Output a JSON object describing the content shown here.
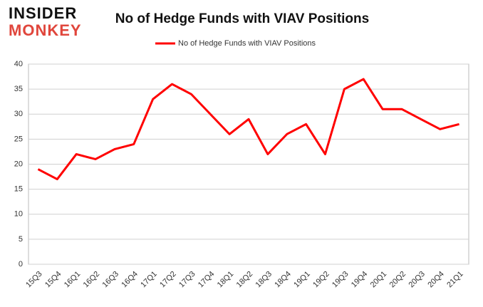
{
  "logo": {
    "line1": "INSIDER",
    "line2": "MONKEY"
  },
  "chart_data": {
    "type": "line",
    "title": "No of Hedge Funds with VIAV Positions",
    "categories": [
      "15Q3",
      "15Q4",
      "16Q1",
      "16Q2",
      "16Q3",
      "16Q4",
      "17Q1",
      "17Q2",
      "17Q3",
      "17Q4",
      "18Q1",
      "18Q2",
      "18Q3",
      "18Q4",
      "19Q1",
      "19Q2",
      "19Q3",
      "19Q4",
      "20Q1",
      "20Q2",
      "20Q3",
      "20Q4",
      "21Q1"
    ],
    "series": [
      {
        "name": "No of Hedge Funds with VIAV Positions",
        "color": "#ff0000",
        "values": [
          19,
          17,
          22,
          21,
          23,
          24,
          33,
          36,
          34,
          30,
          26,
          29,
          22,
          26,
          28,
          22,
          35,
          37,
          31,
          31,
          29,
          27,
          28
        ]
      }
    ],
    "ylim": [
      0,
      40
    ],
    "yticks": [
      0,
      5,
      10,
      15,
      20,
      25,
      30,
      35,
      40
    ],
    "grid": true,
    "legend": "top"
  }
}
